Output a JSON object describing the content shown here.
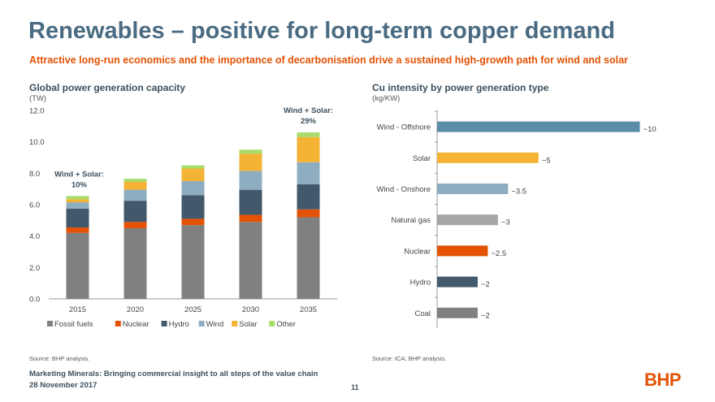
{
  "header": {
    "title": "Renewables – positive for long-term copper demand",
    "subtitle": "Attractive long-run economics and the importance of decarbonisation drive a sustained high-growth path for wind and solar"
  },
  "footer": {
    "line1": "Marketing Minerals: Bringing commercial insight to all steps of the value chain",
    "line2": "28 November 2017",
    "page": "11",
    "logo": "BHP"
  },
  "colors": {
    "fossil": "#808080",
    "nuclear": "#e35205",
    "hydro": "#42596b",
    "wind": "#8fadc0",
    "solar": "#f5b335",
    "other": "#a8dc6a",
    "offshore": "#5b8ca8",
    "natgas": "#a6a6a6"
  },
  "chart_data": [
    {
      "type": "bar",
      "stacked": true,
      "title": "Global power generation capacity",
      "unit": "(TW)",
      "categories": [
        "2015",
        "2020",
        "2025",
        "2030",
        "2035"
      ],
      "ylim": [
        0,
        12
      ],
      "yticks": [
        "0.0",
        "2.0",
        "4.0",
        "6.0",
        "8.0",
        "10.0",
        "12.0"
      ],
      "series": [
        {
          "name": "Fossil fuels",
          "color": "#808080",
          "values": [
            4.2,
            4.5,
            4.7,
            4.9,
            5.2
          ]
        },
        {
          "name": "Nuclear",
          "color": "#e35205",
          "values": [
            0.35,
            0.4,
            0.4,
            0.45,
            0.5
          ]
        },
        {
          "name": "Hydro",
          "color": "#42596b",
          "values": [
            1.2,
            1.35,
            1.5,
            1.6,
            1.6
          ]
        },
        {
          "name": "Wind",
          "color": "#8fadc0",
          "values": [
            0.4,
            0.7,
            0.9,
            1.2,
            1.4
          ]
        },
        {
          "name": "Solar",
          "color": "#f5b335",
          "values": [
            0.2,
            0.5,
            0.8,
            1.1,
            1.6
          ]
        },
        {
          "name": "Other",
          "color": "#a8dc6a",
          "values": [
            0.2,
            0.2,
            0.2,
            0.25,
            0.3
          ]
        }
      ],
      "annotations": [
        {
          "line1": "Wind + Solar:",
          "line2": "10%",
          "category": "2015"
        },
        {
          "line1": "Wind + Solar:",
          "line2": "29%",
          "category": "2035"
        }
      ],
      "legend_position": "bottom"
    },
    {
      "type": "bar",
      "orientation": "horizontal",
      "title": "Cu intensity by power generation type",
      "unit": "(kg/KW)",
      "categories": [
        "Wind - Offshore",
        "Solar",
        "Wind - Onshore",
        "Natural gas",
        "Nuclear",
        "Hydro",
        "Coal"
      ],
      "values": [
        10,
        5,
        3.5,
        3,
        2.5,
        2,
        2
      ],
      "labels": [
        "~10",
        "~5",
        "~3.5",
        "~3",
        "~2.5",
        "~2",
        "~2"
      ],
      "colors": [
        "#5b8ca8",
        "#f5b335",
        "#8fadc0",
        "#a6a6a6",
        "#e35205",
        "#42596b",
        "#808080"
      ],
      "xlim": [
        0,
        10.5
      ]
    }
  ],
  "sources": {
    "left": "Source:   BHP analysis.",
    "right": "Source:   ICA; BHP analysis."
  }
}
